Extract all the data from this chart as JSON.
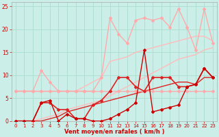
{
  "background_color": "#cceee8",
  "grid_color": "#aaddcc",
  "xlabel": "Vent moyen/en rafales ( km/h )",
  "xlabel_color": "#cc0000",
  "tick_color": "#cc0000",
  "xlim": [
    -0.5,
    23.5
  ],
  "ylim": [
    0,
    26
  ],
  "yticks": [
    0,
    5,
    10,
    15,
    20,
    25
  ],
  "xticks": [
    0,
    1,
    2,
    3,
    4,
    5,
    6,
    7,
    8,
    9,
    10,
    11,
    12,
    13,
    14,
    15,
    16,
    17,
    18,
    19,
    20,
    21,
    22,
    23
  ],
  "lines": [
    {
      "x": [
        0,
        1,
        2,
        3,
        4,
        5,
        6,
        7,
        8,
        9,
        10,
        11,
        12,
        13,
        14,
        15,
        16,
        17,
        18,
        19,
        20,
        21,
        22,
        23
      ],
      "y": [
        6.5,
        6.5,
        6.5,
        6.5,
        6.5,
        6.5,
        6.5,
        6.5,
        6.5,
        6.5,
        6.5,
        6.5,
        6.5,
        6.5,
        6.5,
        6.5,
        6.5,
        6.5,
        6.5,
        6.5,
        6.5,
        6.5,
        6.5,
        6.5
      ],
      "color": "#ffaaaa",
      "lw": 1.0,
      "marker": "D",
      "ms": 2.0
    },
    {
      "x": [
        0,
        1,
        2,
        3,
        4,
        5,
        6,
        7,
        8,
        9,
        10,
        11,
        12,
        13,
        14,
        15,
        16,
        17,
        18,
        19,
        20,
        21,
        22,
        23
      ],
      "y": [
        6.5,
        6.5,
        6.5,
        11.0,
        8.5,
        6.5,
        6.5,
        6.5,
        6.5,
        6.5,
        9.5,
        22.5,
        19.0,
        17.0,
        22.0,
        22.5,
        22.0,
        22.5,
        20.5,
        24.5,
        20.5,
        15.5,
        24.5,
        17.0
      ],
      "color": "#ffaaaa",
      "lw": 1.0,
      "marker": "D",
      "ms": 2.0
    },
    {
      "x": [
        0,
        1,
        2,
        3,
        4,
        5,
        6,
        7,
        8,
        9,
        10,
        11,
        12,
        13,
        14,
        15,
        16,
        17,
        18,
        19,
        20,
        21,
        22,
        23
      ],
      "y": [
        6.5,
        6.5,
        6.5,
        6.5,
        6.5,
        6.5,
        6.5,
        6.5,
        7.5,
        8.5,
        9.5,
        13.0,
        13.5,
        14.0,
        15.0,
        15.5,
        16.0,
        16.5,
        17.0,
        17.5,
        18.0,
        18.5,
        18.5,
        17.5
      ],
      "color": "#ffbbbb",
      "lw": 1.0,
      "marker": null,
      "ms": 0
    },
    {
      "x": [
        0,
        1,
        2,
        3,
        4,
        5,
        6,
        7,
        8,
        9,
        10,
        11,
        12,
        13,
        14,
        15,
        16,
        17,
        18,
        19,
        20,
        21,
        22,
        23
      ],
      "y": [
        0.0,
        0.0,
        0.0,
        0.5,
        1.0,
        1.5,
        2.5,
        3.0,
        3.5,
        4.0,
        4.5,
        5.5,
        6.5,
        7.5,
        8.5,
        9.5,
        10.5,
        11.5,
        12.5,
        13.5,
        14.0,
        14.5,
        15.5,
        16.0
      ],
      "color": "#ffbbbb",
      "lw": 1.0,
      "marker": null,
      "ms": 0
    },
    {
      "x": [
        0,
        1,
        2,
        3,
        4,
        5,
        6,
        7,
        8,
        9,
        10,
        11,
        12,
        13,
        14,
        15,
        16,
        17,
        18,
        19,
        20,
        21,
        22,
        23
      ],
      "y": [
        0.0,
        0.0,
        0.0,
        4.0,
        4.0,
        2.5,
        2.5,
        0.5,
        0.5,
        3.5,
        4.5,
        6.5,
        9.5,
        9.5,
        7.5,
        6.5,
        9.5,
        9.5,
        9.5,
        7.5,
        7.5,
        8.0,
        11.5,
        9.5
      ],
      "color": "#dd2222",
      "lw": 1.2,
      "marker": "D",
      "ms": 2.0
    },
    {
      "x": [
        0,
        1,
        2,
        3,
        4,
        5,
        6,
        7,
        8,
        9,
        10,
        11,
        12,
        13,
        14,
        15,
        16,
        17,
        18,
        19,
        20,
        21,
        22,
        23
      ],
      "y": [
        0.0,
        0.0,
        0.0,
        0.0,
        0.5,
        1.0,
        2.0,
        2.5,
        3.0,
        3.5,
        4.0,
        4.5,
        5.0,
        5.5,
        6.0,
        6.5,
        7.0,
        7.5,
        8.0,
        8.5,
        8.5,
        8.0,
        9.5,
        9.5
      ],
      "color": "#dd2222",
      "lw": 1.0,
      "marker": null,
      "ms": 0
    },
    {
      "x": [
        0,
        1,
        2,
        3,
        4,
        5,
        6,
        7,
        8,
        9,
        10,
        11,
        12,
        13,
        14,
        15,
        16,
        17,
        18,
        19,
        20,
        21,
        22,
        23
      ],
      "y": [
        0.0,
        0.0,
        0.0,
        4.0,
        4.5,
        0.0,
        1.5,
        0.5,
        0.5,
        0.0,
        0.0,
        0.5,
        1.5,
        2.5,
        4.0,
        15.5,
        2.0,
        2.5,
        3.0,
        3.5,
        7.5,
        8.0,
        11.5,
        9.5
      ],
      "color": "#cc0000",
      "lw": 1.0,
      "marker": "D",
      "ms": 2.0
    }
  ]
}
